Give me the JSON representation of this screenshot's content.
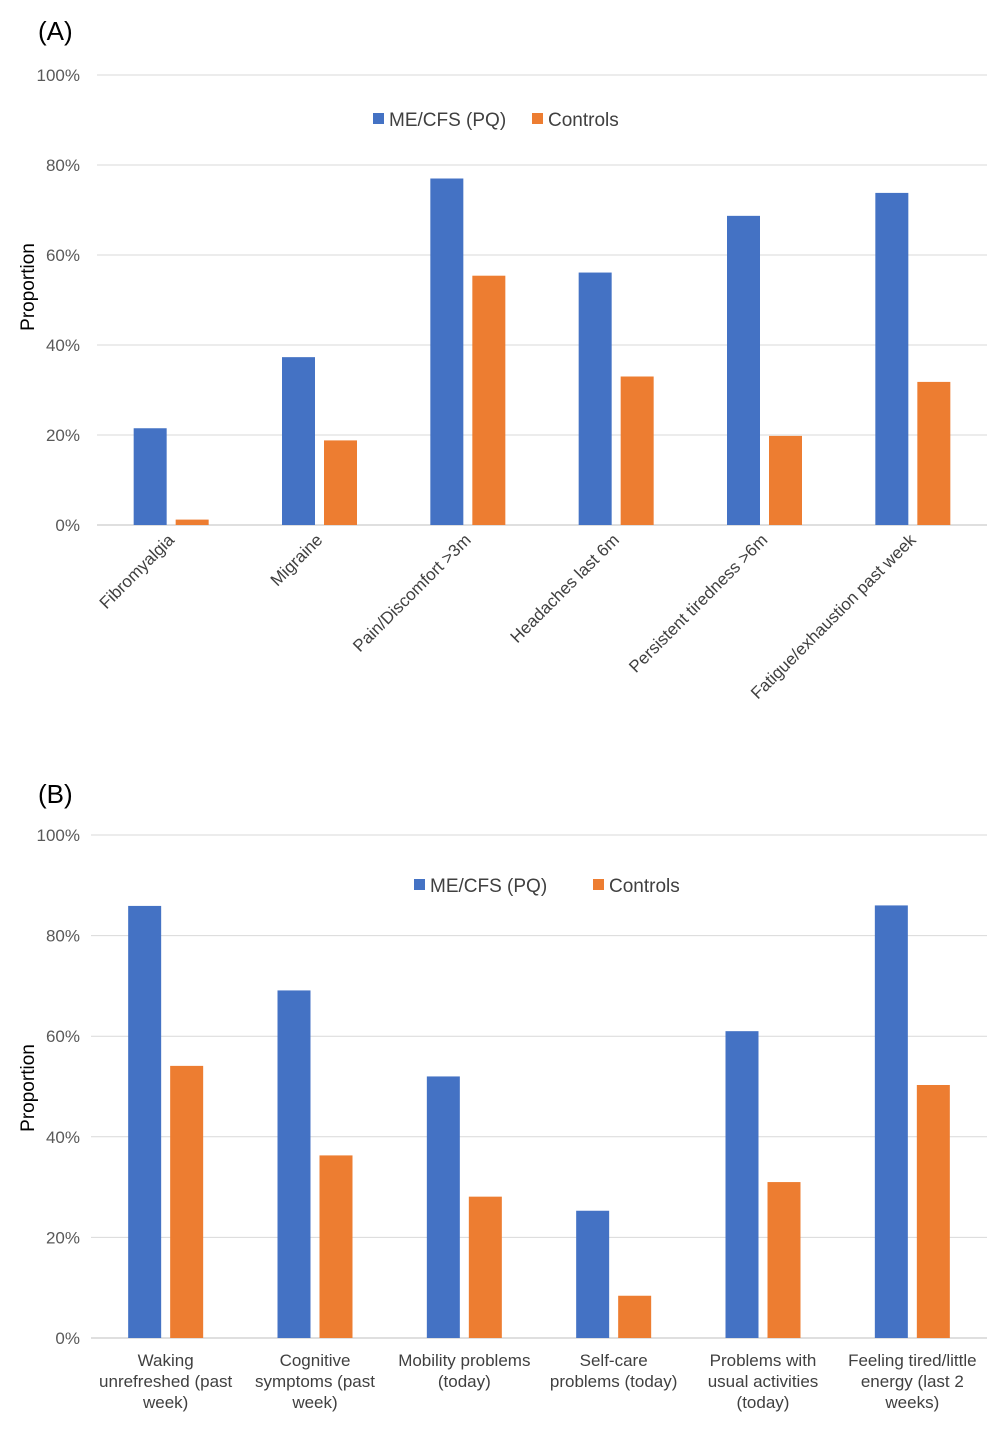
{
  "chart_data": [
    {
      "panel_label": "(A)",
      "type": "bar",
      "ylabel": "Proportion",
      "ylim": [
        0,
        100
      ],
      "yticks": [
        "0%",
        "20%",
        "40%",
        "60%",
        "80%",
        "100%"
      ],
      "grid": true,
      "legend_position": "top-center",
      "categories": [
        "Fibromyalgia",
        "Migraine",
        "Pain/Discomfort >3m",
        "Headaches last 6m",
        "Persistent tiredness >6m",
        "Fatigue/exhaustion past week"
      ],
      "series": [
        {
          "name": "ME/CFS (PQ)",
          "color": "#4472c4",
          "values": [
            21.5,
            37.3,
            77.0,
            56.1,
            68.7,
            73.8
          ]
        },
        {
          "name": "Controls",
          "color": "#ed7d31",
          "values": [
            1.2,
            18.8,
            55.4,
            33.0,
            19.8,
            31.8
          ]
        }
      ]
    },
    {
      "panel_label": "(B)",
      "type": "bar",
      "ylabel": "Proportion",
      "ylim": [
        0,
        100
      ],
      "yticks": [
        "0%",
        "20%",
        "40%",
        "60%",
        "80%",
        "100%"
      ],
      "grid": true,
      "legend_position": "top-center",
      "categories": [
        "Waking unrefreshed (past week)",
        "Cognitive symptoms (past week)",
        "Mobility problems (today)",
        "Self-care problems (today)",
        "Problems with usual activities (today)",
        "Feeling tired/little energy (last 2 weeks)"
      ],
      "category_lines": [
        [
          "Waking",
          "unrefreshed (past",
          "week)"
        ],
        [
          "Cognitive",
          "symptoms (past",
          "week)"
        ],
        [
          "Mobility problems",
          "(today)"
        ],
        [
          "Self-care",
          "problems (today)"
        ],
        [
          "Problems with",
          "usual activities",
          "(today)"
        ],
        [
          "Feeling tired/little",
          "energy (last 2",
          "weeks)"
        ]
      ],
      "series": [
        {
          "name": "ME/CFS (PQ)",
          "color": "#4472c4",
          "values": [
            85.9,
            69.1,
            52.0,
            25.3,
            61.0,
            86.0
          ]
        },
        {
          "name": "Controls",
          "color": "#ed7d31",
          "values": [
            54.1,
            36.3,
            28.1,
            8.4,
            31.0,
            50.3
          ]
        }
      ]
    }
  ]
}
